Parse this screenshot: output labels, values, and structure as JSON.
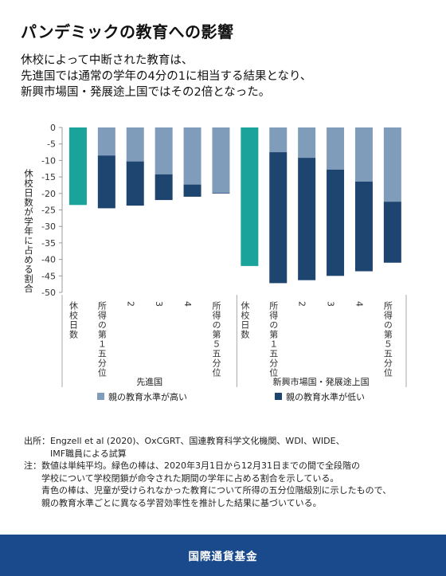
{
  "header": {
    "title": "パンデミックの教育への影響",
    "subtitle": "休校によって中断された教育は、\n先進国では通常の学年の4分の1に相当する結果となり、\n新興市場国・発展途上国ではその2倍となった。"
  },
  "chart_data": {
    "type": "bar",
    "ylabel": "休校日数が学年に占める割合",
    "ylim": [
      -50,
      0
    ],
    "yticks": [
      0,
      -5,
      -10,
      -15,
      -20,
      -25,
      -30,
      -35,
      -40,
      -45,
      -50
    ],
    "groups": [
      {
        "name": "先進国",
        "categories": [
          "休校日数",
          "所得の第１五分位",
          "2",
          "3",
          "4",
          "所得の第５五分位"
        ],
        "closure": -23.5,
        "high": [
          null,
          -8.5,
          -10.3,
          -14.2,
          -17.3,
          -19.8
        ],
        "low": [
          null,
          -24.5,
          -23.7,
          -22.0,
          -21.0,
          -20.0
        ]
      },
      {
        "name": "新興市場国・発展途上国",
        "categories": [
          "休校日数",
          "所得の第１五分位",
          "2",
          "3",
          "4",
          "所得の第５五分位"
        ],
        "closure": -42.0,
        "high": [
          null,
          -7.5,
          -9.2,
          -12.8,
          -16.4,
          -22.5
        ],
        "low": [
          null,
          -47.2,
          -46.3,
          -45.0,
          -43.6,
          -41.0
        ]
      }
    ],
    "legend": [
      "親の教育水準が高い",
      "親の教育水準が低い"
    ],
    "legend_position": "bottom",
    "colors": {
      "closure": "#1aa39a",
      "high": "#7f9dba",
      "low": "#1e4470"
    }
  },
  "notes": {
    "source_label": "出所：",
    "source_text": "Engzell et al (2020)、OxCGRT、国連教育科学文化機関、WDI、WIDE、\nIMF職員による試算",
    "note_label": "注：",
    "note_text": "数値は単純平均。緑色の棒は、2020年3月1日から12月31日までの間で全段階の\n学校について学校閉鎖が命令された期間の学年に占める割合を示している。\n青色の棒は、児童が受けられなかった教育について所得の五分位階級別に示したもので、\n親の教育水準ごとに異なる学習効率性を推計した結果に基づいている。"
  },
  "footer": {
    "org": "国際通貨基金"
  }
}
